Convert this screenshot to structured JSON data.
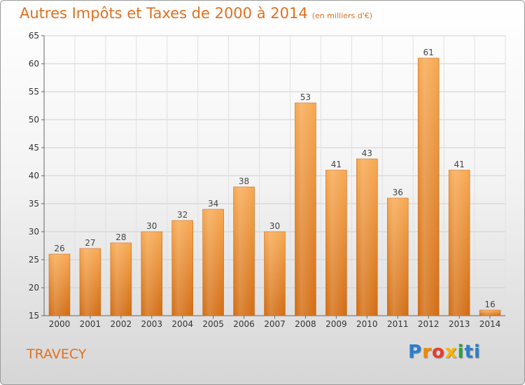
{
  "chart_data": {
    "type": "bar",
    "title": "Autres Impôts et Taxes de 2000 à 2014",
    "subtitle": "(en milliers d'€)",
    "categories": [
      "2000",
      "2001",
      "2002",
      "2003",
      "2004",
      "2005",
      "2006",
      "2007",
      "2008",
      "2009",
      "2010",
      "2011",
      "2012",
      "2013",
      "2014"
    ],
    "values": [
      26,
      27,
      28,
      30,
      32,
      34,
      38,
      30,
      53,
      41,
      43,
      36,
      61,
      41,
      16
    ],
    "ylim": [
      15,
      65
    ],
    "yticks": [
      15,
      20,
      25,
      30,
      35,
      40,
      45,
      50,
      55,
      60,
      65
    ],
    "grid": true,
    "bar_color": "#f39a3c"
  },
  "commune": "TRAVECY",
  "logo": {
    "letters": [
      "P",
      "r",
      "o",
      "x",
      "i",
      "ti"
    ]
  }
}
